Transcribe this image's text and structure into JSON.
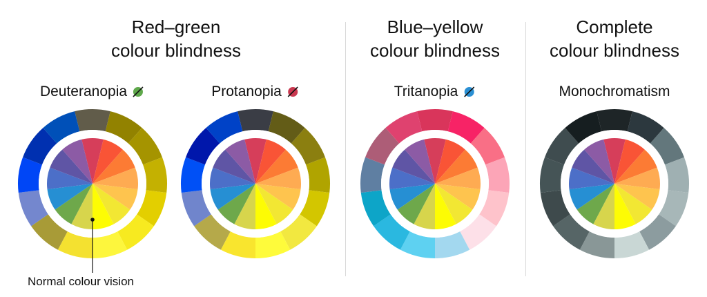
{
  "groups": {
    "red_green": {
      "line1": "Red–green",
      "line2": "colour blindness"
    },
    "blue_yellow": {
      "line1": "Blue–yellow",
      "line2": "colour blindness"
    },
    "complete": {
      "line1": "Complete",
      "line2": "colour blindness"
    }
  },
  "annotation": "Normal colour vision",
  "normal_colors": [
    "#d63e5a",
    "#f95436",
    "#fc7b34",
    "#feab52",
    "#fec44e",
    "#f2e733",
    "#fdfc04",
    "#d7d54c",
    "#6ea84b",
    "#268fd3",
    "#4c6fc8",
    "#5f55a5",
    "#8c5ba5"
  ],
  "wheels": [
    {
      "title": "Deuteranopia",
      "icon_color": "#5fa84b",
      "outer_colors": [
        "#615c4a",
        "#928200",
        "#a59400",
        "#c4b101",
        "#e3cf00",
        "#f7ea20",
        "#fdf63d",
        "#f4e130",
        "#a89b37",
        "#7487ce",
        "#0046f6",
        "#0030b0",
        "#0050b8"
      ]
    },
    {
      "title": "Protanopia",
      "icon_color": "#c9374f",
      "outer_colors": [
        "#3a3d45",
        "#635c17",
        "#8b7f10",
        "#b0a400",
        "#d3c600",
        "#f2e840",
        "#fefb3b",
        "#f9e52e",
        "#b5a94a",
        "#7085cc",
        "#0050f6",
        "#0017ab",
        "#0042c7"
      ]
    },
    {
      "title": "Tritanopia",
      "icon_color": "#2a8fd3",
      "outer_colors": [
        "#d9355b",
        "#f72366",
        "#f96f86",
        "#fca5b7",
        "#fec3cb",
        "#fde0e8",
        "#a3d8ef",
        "#5ed1f1",
        "#2ab8e0",
        "#0da5c8",
        "#5f7fa2",
        "#ad5d77",
        "#df426f"
      ]
    },
    {
      "title": "Monochromatism",
      "icon_color": "",
      "outer_colors": [
        "#1e2527",
        "#2c383e",
        "#63777c",
        "#9fb0b2",
        "#a7b7b8",
        "#8c9c9f",
        "#c9d7d5",
        "#899797",
        "#566566",
        "#3e4a4c",
        "#455456",
        "#3f4c4f",
        "#161e20"
      ]
    }
  ]
}
